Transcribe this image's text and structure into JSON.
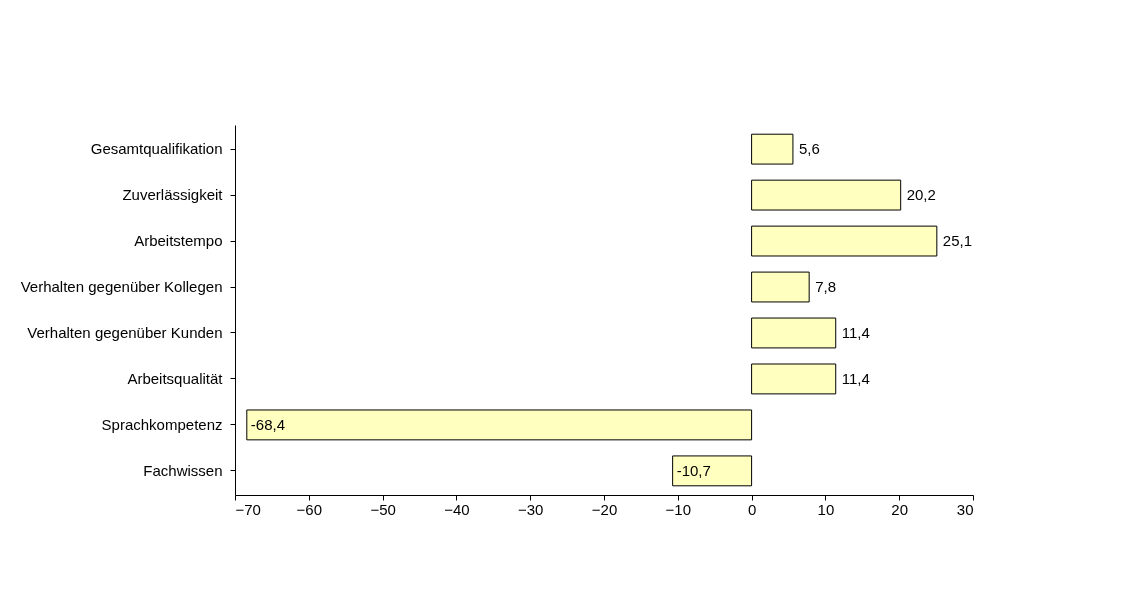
{
  "chart_data": {
    "type": "bar",
    "orientation": "horizontal",
    "categories": [
      "Gesamtqualifikation",
      "Zuverlässigkeit",
      "Arbeitstempo",
      "Verhalten gegenüber Kollegen",
      "Verhalten gegenüber Kunden",
      "Arbeitsqualität",
      "Sprachkompetenz",
      "Fachwissen"
    ],
    "values": [
      5.6,
      20.2,
      25.1,
      7.8,
      11.4,
      11.4,
      -68.4,
      -10.7
    ],
    "value_labels": [
      "5,6",
      "20,2",
      "25,1",
      "7,8",
      "11,4",
      "11,4",
      "-68,4",
      "-10,7"
    ],
    "color": "#ffffc0",
    "xlim": [
      -70,
      30
    ],
    "xticks": [
      -70,
      -60,
      -50,
      -40,
      -30,
      -20,
      -10,
      0,
      10,
      20,
      30
    ],
    "grid": false
  }
}
